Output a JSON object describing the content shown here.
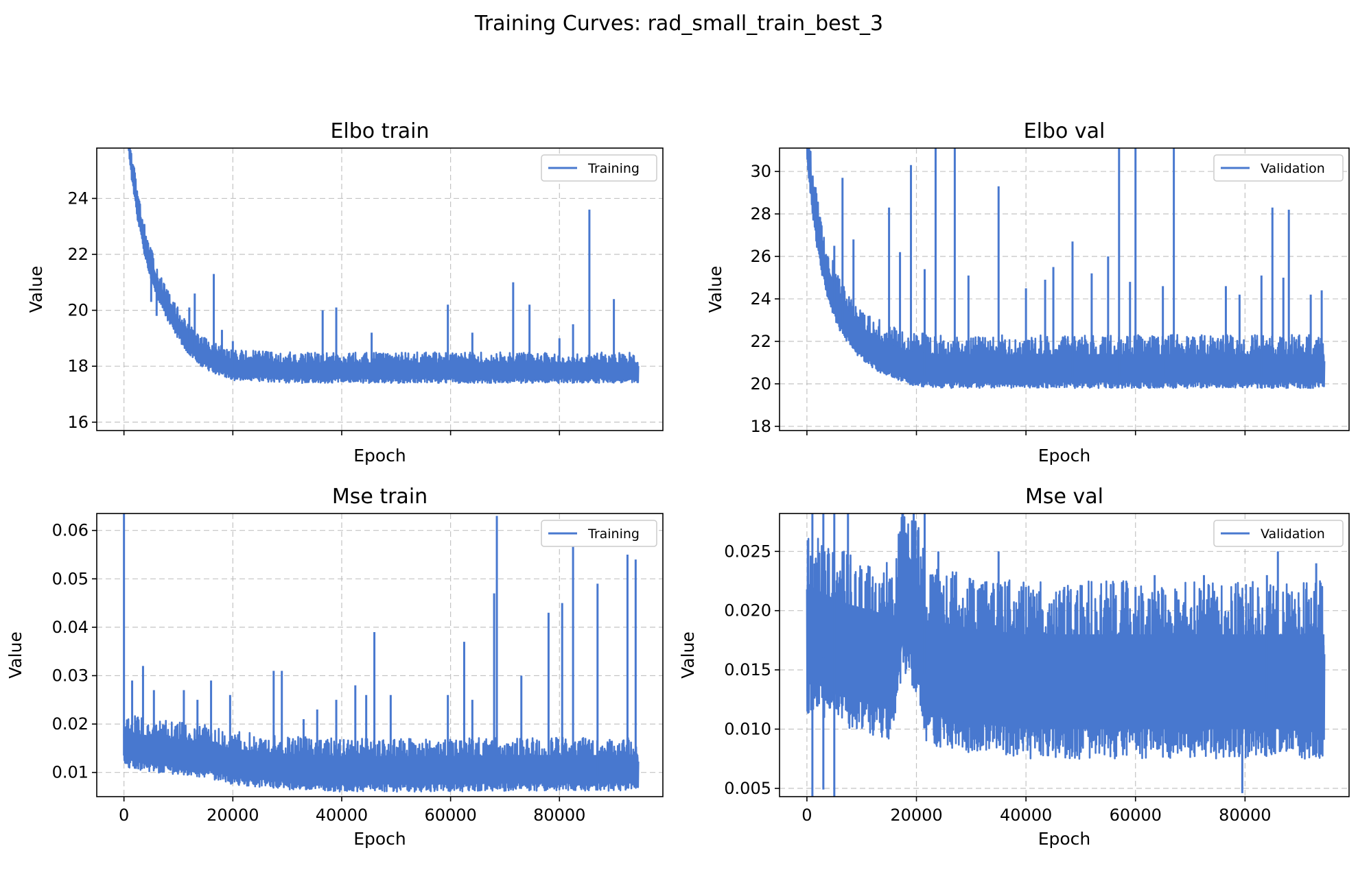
{
  "suptitle": "Training Curves: rad_small_train_best_3",
  "line_color": "#4878cf",
  "chart_data": [
    {
      "type": "line",
      "title": "Elbo train",
      "xlabel": "Epoch",
      "ylabel": "Value",
      "show_xticklabels": false,
      "xlim": [
        -5000,
        99000
      ],
      "ylim": [
        15.7,
        25.8
      ],
      "xticks": [
        0,
        20000,
        40000,
        60000,
        80000
      ],
      "yticks": [
        16,
        18,
        20,
        22,
        24
      ],
      "grid": true,
      "legend_position": "top-right",
      "series": [
        {
          "name": "Training",
          "color": "#4878cf",
          "x": [
            0,
            800,
            1500,
            2500,
            3500,
            4500,
            6000,
            7500,
            9000,
            10500,
            12000,
            13500,
            15000,
            17000,
            19000,
            20000,
            25000,
            30000,
            40000,
            50000,
            60000,
            70000,
            80000,
            90000,
            94500
          ],
          "y": [
            27.5,
            26.0,
            24.8,
            23.5,
            22.5,
            21.7,
            20.8,
            20.1,
            19.6,
            19.1,
            18.7,
            18.4,
            18.2,
            18.0,
            17.85,
            17.8,
            17.75,
            17.7,
            17.7,
            17.7,
            17.7,
            17.7,
            17.7,
            17.7,
            17.7
          ],
          "noise_band": [
            0.3,
            0.8
          ],
          "spikes": [
            [
              5000,
              20.3
            ],
            [
              6000,
              19.8
            ],
            [
              7500,
              20.2
            ],
            [
              9000,
              20.0
            ],
            [
              10500,
              19.6
            ],
            [
              12000,
              20.1
            ],
            [
              13000,
              20.6
            ],
            [
              16500,
              21.3
            ],
            [
              18000,
              19.3
            ],
            [
              20000,
              18.9
            ],
            [
              36500,
              20.0
            ],
            [
              39000,
              20.1
            ],
            [
              45500,
              19.2
            ],
            [
              59500,
              20.2
            ],
            [
              64000,
              19.2
            ],
            [
              71500,
              21.0
            ],
            [
              74500,
              20.2
            ],
            [
              80000,
              19.0
            ],
            [
              82500,
              19.5
            ],
            [
              85500,
              23.6
            ],
            [
              90000,
              20.4
            ]
          ]
        }
      ]
    },
    {
      "type": "line",
      "title": "Elbo val",
      "xlabel": "Epoch",
      "ylabel": "Value",
      "show_xticklabels": false,
      "xlim": [
        -5000,
        99000
      ],
      "ylim": [
        17.8,
        31.1
      ],
      "xticks": [
        0,
        20000,
        40000,
        60000,
        80000
      ],
      "yticks": [
        18,
        20,
        22,
        24,
        26,
        28,
        30
      ],
      "grid": true,
      "legend_position": "top-right",
      "series": [
        {
          "name": "Validation",
          "color": "#4878cf",
          "x": [
            0,
            1000,
            2000,
            3000,
            4000,
            5000,
            6000,
            7500,
            9000,
            10500,
            12000,
            14000,
            16000,
            18000,
            20000,
            22000,
            25000,
            30000,
            40000,
            50000,
            60000,
            70000,
            80000,
            90000,
            94500
          ],
          "y": [
            31.0,
            28.5,
            26.6,
            25.3,
            24.3,
            23.6,
            23.0,
            22.4,
            21.9,
            21.5,
            21.2,
            20.9,
            20.7,
            20.5,
            20.4,
            20.35,
            20.3,
            20.3,
            20.3,
            20.3,
            20.3,
            20.3,
            20.3,
            20.3,
            20.3
          ],
          "noise_band": [
            0.5,
            2.0
          ],
          "spikes": [
            [
              5000,
              26.5
            ],
            [
              6500,
              29.7
            ],
            [
              8500,
              26.8
            ],
            [
              15000,
              28.3
            ],
            [
              17000,
              26.2
            ],
            [
              19000,
              30.3
            ],
            [
              21500,
              25.4
            ],
            [
              23500,
              31.1
            ],
            [
              27000,
              31.1
            ],
            [
              29500,
              25.1
            ],
            [
              35000,
              29.3
            ],
            [
              40000,
              24.5
            ],
            [
              43500,
              24.9
            ],
            [
              45000,
              25.5
            ],
            [
              48500,
              26.7
            ],
            [
              52000,
              25.2
            ],
            [
              55000,
              26.0
            ],
            [
              57000,
              31.1
            ],
            [
              59000,
              24.8
            ],
            [
              60000,
              31.1
            ],
            [
              65000,
              24.6
            ],
            [
              67000,
              31.1
            ],
            [
              76500,
              24.6
            ],
            [
              79000,
              24.2
            ],
            [
              83000,
              25.1
            ],
            [
              85000,
              28.3
            ],
            [
              87000,
              25.0
            ],
            [
              88000,
              28.2
            ],
            [
              92000,
              24.2
            ],
            [
              94000,
              24.4
            ]
          ]
        }
      ]
    },
    {
      "type": "line",
      "title": "Mse train",
      "xlabel": "Epoch",
      "ylabel": "Value",
      "show_xticklabels": true,
      "xlim": [
        -5000,
        99000
      ],
      "ylim": [
        0.005,
        0.0635
      ],
      "xticks": [
        0,
        20000,
        40000,
        60000,
        80000
      ],
      "yticks": [
        0.01,
        0.02,
        0.03,
        0.04,
        0.05,
        0.06
      ],
      "grid": true,
      "legend_position": "top-right",
      "series": [
        {
          "name": "Training",
          "color": "#4878cf",
          "x": [
            0,
            1000,
            3000,
            6000,
            10000,
            15000,
            20000,
            30000,
            40000,
            50000,
            60000,
            70000,
            80000,
            90000,
            94500
          ],
          "y": [
            0.0135,
            0.014,
            0.0135,
            0.013,
            0.0125,
            0.012,
            0.0105,
            0.0095,
            0.009,
            0.009,
            0.009,
            0.0092,
            0.0092,
            0.0092,
            0.0092
          ],
          "noise_band": [
            0.003,
            0.008
          ],
          "spikes": [
            [
              0,
              0.0635
            ],
            [
              1500,
              0.029
            ],
            [
              3500,
              0.032
            ],
            [
              5500,
              0.027
            ],
            [
              11000,
              0.027
            ],
            [
              13500,
              0.025
            ],
            [
              16000,
              0.029
            ],
            [
              19500,
              0.026
            ],
            [
              27500,
              0.031
            ],
            [
              29000,
              0.031
            ],
            [
              33000,
              0.021
            ],
            [
              35500,
              0.023
            ],
            [
              39000,
              0.025
            ],
            [
              42500,
              0.028
            ],
            [
              44500,
              0.026
            ],
            [
              46000,
              0.039
            ],
            [
              49000,
              0.026
            ],
            [
              59500,
              0.026
            ],
            [
              62500,
              0.037
            ],
            [
              64000,
              0.025
            ],
            [
              68000,
              0.047
            ],
            [
              68500,
              0.063
            ],
            [
              73000,
              0.03
            ],
            [
              78000,
              0.043
            ],
            [
              80500,
              0.045
            ],
            [
              82500,
              0.058
            ],
            [
              87000,
              0.049
            ],
            [
              92500,
              0.055
            ],
            [
              94000,
              0.054
            ]
          ]
        }
      ]
    },
    {
      "type": "line",
      "title": "Mse val",
      "xlabel": "Epoch",
      "ylabel": "Value",
      "show_xticklabels": true,
      "xlim": [
        -5000,
        99000
      ],
      "ylim": [
        0.0043,
        0.0282
      ],
      "xticks": [
        0,
        20000,
        40000,
        60000,
        80000
      ],
      "yticks": [
        0.005,
        0.01,
        0.015,
        0.02,
        0.025
      ],
      "grid": true,
      "legend_position": "top-right",
      "series": [
        {
          "name": "Validation",
          "color": "#4878cf",
          "x": [
            0,
            1000,
            3000,
            5000,
            8000,
            12000,
            16000,
            17500,
            20000,
            22000,
            25000,
            30000,
            40000,
            50000,
            60000,
            70000,
            80000,
            90000,
            94500
          ],
          "y": [
            0.016,
            0.0165,
            0.016,
            0.0155,
            0.015,
            0.0145,
            0.014,
            0.02,
            0.018,
            0.0135,
            0.0135,
            0.013,
            0.0125,
            0.0125,
            0.0125,
            0.0125,
            0.0125,
            0.0125,
            0.0125
          ],
          "noise_band": [
            0.005,
            0.01
          ],
          "spikes": [
            [
              1000,
              0.0282
            ],
            [
              3000,
              0.0282
            ],
            [
              5000,
              0.0282
            ],
            [
              7500,
              0.0282
            ],
            [
              17500,
              0.0282
            ],
            [
              19500,
              0.0282
            ],
            [
              21500,
              0.0282
            ],
            [
              24000,
              0.025
            ],
            [
              27000,
              0.023
            ],
            [
              35000,
              0.025
            ],
            [
              40000,
              0.022
            ],
            [
              47000,
              0.022
            ],
            [
              55000,
              0.021
            ],
            [
              60000,
              0.022
            ],
            [
              63500,
              0.023
            ],
            [
              72500,
              0.023
            ],
            [
              81000,
              0.022
            ],
            [
              84000,
              0.023
            ],
            [
              86000,
              0.025
            ],
            [
              88000,
              0.02
            ],
            [
              93000,
              0.024
            ]
          ],
          "dips": [
            [
              1000,
              0.0043
            ],
            [
              3000,
              0.0049
            ],
            [
              5000,
              0.0043
            ],
            [
              79500,
              0.0046
            ]
          ]
        }
      ]
    }
  ]
}
